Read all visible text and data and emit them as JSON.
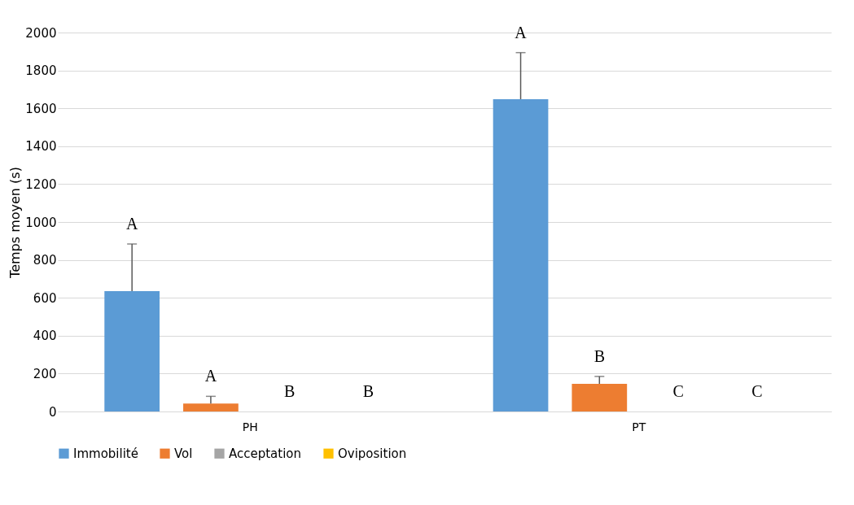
{
  "chart_data": {
    "type": "bar",
    "ylabel": "Temps moyen (s)",
    "categories": [
      "PH",
      "PT"
    ],
    "series": [
      {
        "name": "Immobilité",
        "color": "#5b9bd5",
        "values": [
          635,
          1648
        ],
        "errors": [
          [
            635,
            884
          ],
          [
            1648,
            1894
          ]
        ]
      },
      {
        "name": "Vol",
        "color": "#ed7d31",
        "values": [
          42,
          146
        ],
        "errors": [
          [
            42,
            80
          ],
          [
            146,
            185
          ]
        ]
      },
      {
        "name": "Acceptation",
        "color": "#a5a5a5",
        "values": [
          0,
          0
        ],
        "errors": [
          null,
          null
        ]
      },
      {
        "name": "Oviposition",
        "color": "#ffc000",
        "values": [
          0,
          0
        ],
        "errors": [
          null,
          null
        ]
      }
    ],
    "ylim": [
      0,
      2000
    ],
    "yticks": [
      0,
      200,
      400,
      600,
      800,
      1000,
      1200,
      1400,
      1600,
      1800,
      2000
    ],
    "grid": "y",
    "legend": "bottom",
    "annotations": [
      "A",
      "A",
      "B",
      "B",
      "A",
      "B",
      "C",
      "C"
    ]
  }
}
